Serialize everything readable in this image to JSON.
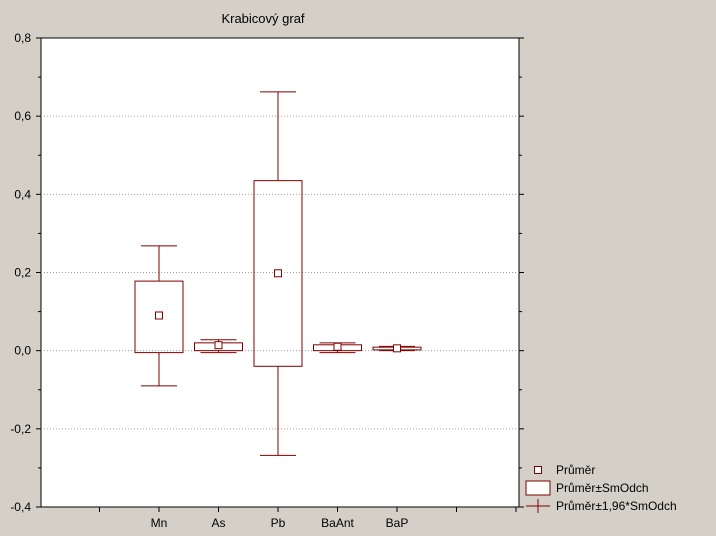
{
  "chart_data": {
    "type": "box",
    "title": "Krabicový graf",
    "xlabel": "",
    "ylabel": "",
    "ylim": [
      -0.4,
      0.8
    ],
    "yticks": [
      -0.4,
      -0.2,
      0.0,
      0.2,
      0.4,
      0.6,
      0.8
    ],
    "ytick_labels": [
      "-0,4",
      "-0,2",
      "0,0",
      "0,2",
      "0,4",
      "0,6",
      "0,8"
    ],
    "grid": true,
    "legend_position": "bottom-right",
    "categories": [
      "Mn",
      "As",
      "Pb",
      "BaAnt",
      "BaP"
    ],
    "series": [
      {
        "category": "Mn",
        "mean": 0.09,
        "box_low": -0.005,
        "box_high": 0.178,
        "whisker_low": -0.09,
        "whisker_high": 0.268
      },
      {
        "category": "As",
        "mean": 0.014,
        "box_low": 0.0,
        "box_high": 0.02,
        "whisker_low": -0.005,
        "whisker_high": 0.028
      },
      {
        "category": "Pb",
        "mean": 0.198,
        "box_low": -0.04,
        "box_high": 0.435,
        "whisker_low": -0.268,
        "whisker_high": 0.662
      },
      {
        "category": "BaAnt",
        "mean": 0.01,
        "box_low": 0.0,
        "box_high": 0.015,
        "whisker_low": -0.005,
        "whisker_high": 0.02
      },
      {
        "category": "BaP",
        "mean": 0.006,
        "box_low": 0.002,
        "box_high": 0.009,
        "whisker_low": 0.0,
        "whisker_high": 0.011
      }
    ],
    "legend": [
      {
        "marker": "square",
        "label": "Průměr"
      },
      {
        "marker": "box",
        "label": "Průměr±SmOdch"
      },
      {
        "marker": "whisker",
        "label": "Průměr±1,96*SmOdch"
      }
    ],
    "colors": {
      "box": "#800000",
      "grid": "#a0a0a0",
      "axis": "#000000",
      "background": "#d4d0c8",
      "plot": "#ffffff"
    }
  }
}
